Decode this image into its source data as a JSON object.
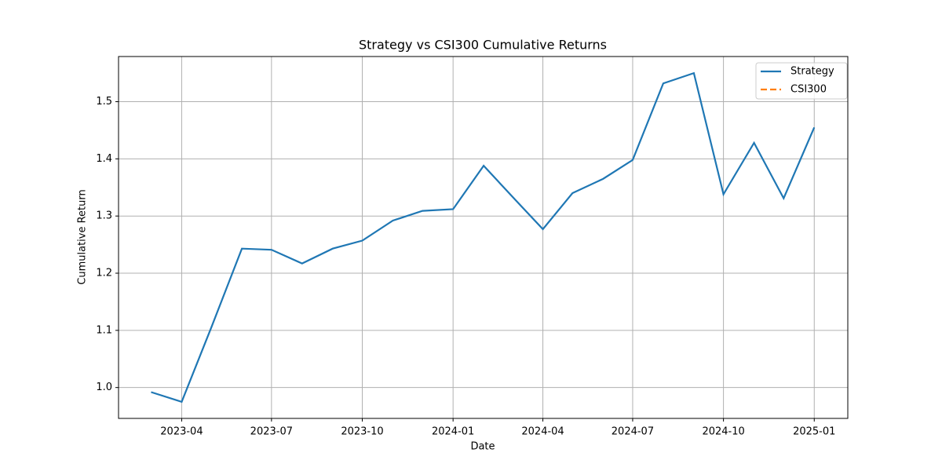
{
  "chart_data": {
    "type": "line",
    "title": "Strategy vs CSI300 Cumulative Returns",
    "xlabel": "Date",
    "ylabel": "Cumulative Return",
    "x": [
      "2023-03",
      "2023-04",
      "2023-05",
      "2023-06",
      "2023-07",
      "2023-08",
      "2023-09",
      "2023-10",
      "2023-11",
      "2023-12",
      "2024-01",
      "2024-02",
      "2024-03",
      "2024-04",
      "2024-05",
      "2024-06",
      "2024-07",
      "2024-08",
      "2024-09",
      "2024-10",
      "2024-11",
      "2024-12",
      "2025-01"
    ],
    "series": [
      {
        "name": "Strategy",
        "color": "#1f77b4",
        "linestyle": "solid",
        "values": [
          0.992,
          0.975,
          1.105,
          1.243,
          1.241,
          1.217,
          1.243,
          1.257,
          1.292,
          1.309,
          1.312,
          1.388,
          1.334,
          1.277,
          1.34,
          1.365,
          1.398,
          1.532,
          1.55,
          1.338,
          1.428,
          1.331,
          1.455
        ]
      },
      {
        "name": "CSI300",
        "color": "#ff7f0e",
        "linestyle": "dashed",
        "values": [
          null,
          null,
          null,
          null,
          null,
          null,
          null,
          null,
          null,
          null,
          null,
          null,
          null,
          null,
          null,
          null,
          null,
          null,
          null,
          null,
          null,
          null,
          null
        ]
      }
    ],
    "xlim": [
      "2023-01-27",
      "2025-02-04"
    ],
    "xticks": [
      "2023-04",
      "2023-07",
      "2023-10",
      "2024-01",
      "2024-04",
      "2024-07",
      "2024-10",
      "2025-01"
    ],
    "ylim": [
      0.946,
      1.579
    ],
    "yticks": [
      {
        "value": 1,
        "label": "1.0"
      },
      1.1,
      1.2,
      1.3,
      1.4,
      1.5
    ],
    "grid": true,
    "legend": "upper right"
  }
}
